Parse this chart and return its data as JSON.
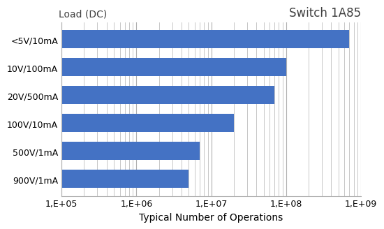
{
  "categories": [
    "900V/1mA",
    "500V/1mA",
    "100V/10mA",
    "20V/500mA",
    "10V/100mA",
    "<5V/10mA"
  ],
  "values": [
    5000000.0,
    7000000.0,
    20000000.0,
    70000000.0,
    100000000.0,
    700000000.0
  ],
  "bar_color": "#4472C4",
  "title": "Switch 1A85",
  "ylabel": "Load (DC)",
  "xlabel": "Typical Number of Operations",
  "xlim_min": 100000.0,
  "xlim_max": 1000000000.0,
  "title_fontsize": 12,
  "label_fontsize": 10,
  "tick_fontsize": 9,
  "background_color": "#ffffff",
  "grid_color": "#b0b0b0",
  "tick_labels": [
    "1,E+05",
    "1,E+06",
    "1,E+07",
    "1,E+08",
    "1,E+09"
  ],
  "tick_positions": [
    100000,
    1000000,
    10000000,
    100000000,
    1000000000
  ]
}
